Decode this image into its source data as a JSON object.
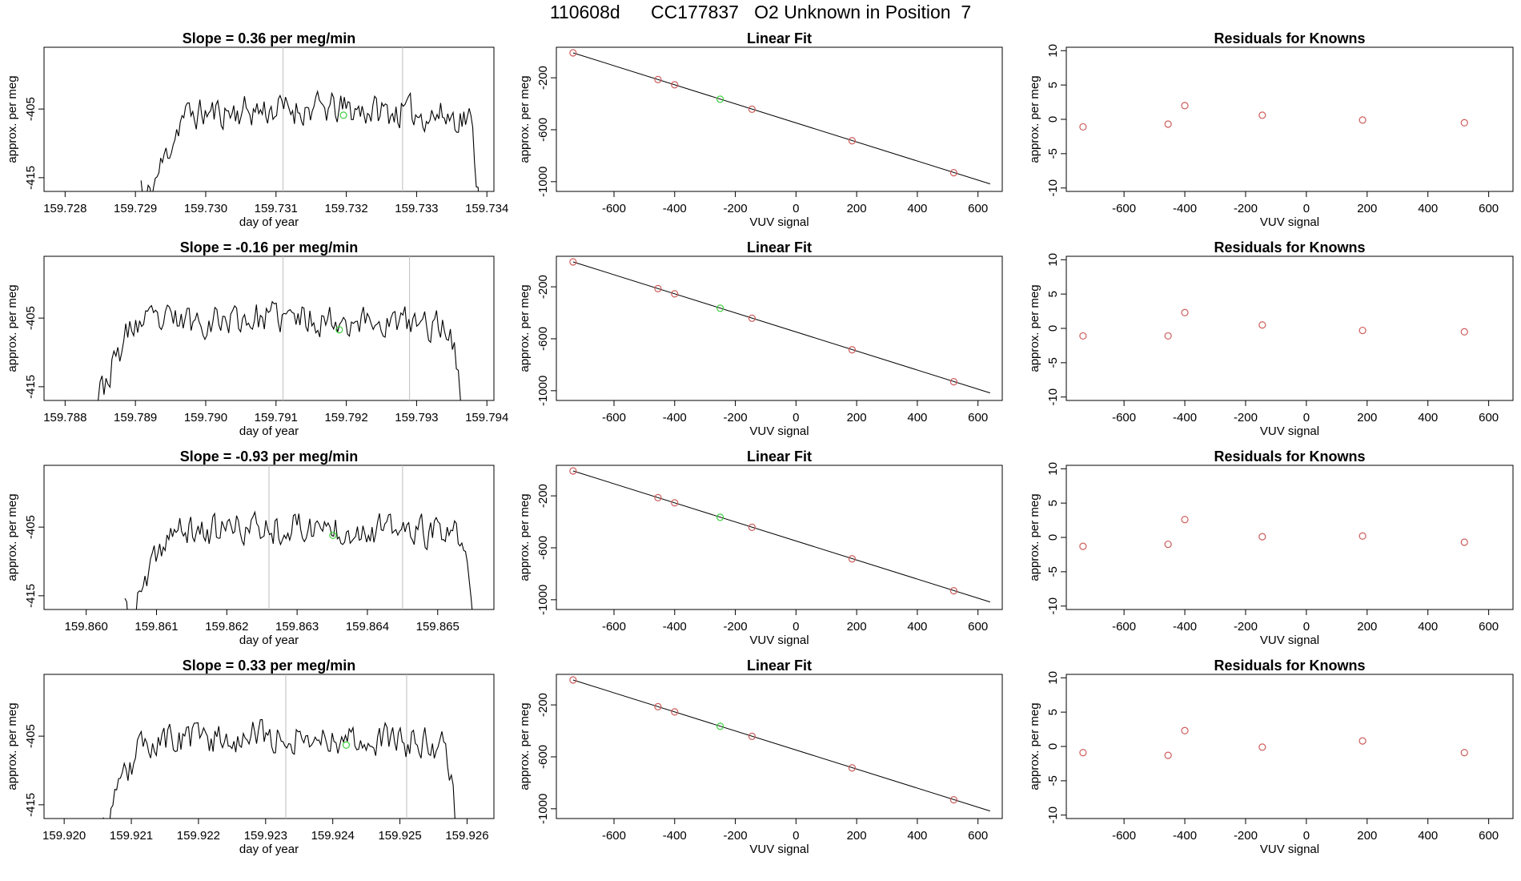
{
  "title": "110608d      CC177837   O2 Unknown in Position  7",
  "colors": {
    "line": "#000000",
    "known_point": "#cd5c5c",
    "unknown_point": "#3cd03c",
    "vline": "#bebebe"
  },
  "rows": [
    {
      "time_series": {
        "title": "Slope =  0.36  per meg/min",
        "xlabel": "day of year",
        "ylabel": "approx. per meg",
        "xlim": [
          159.7277,
          159.7341
        ],
        "ylim": [
          -417,
          -396
        ],
        "xticks": [
          "159.728",
          "159.729",
          "159.730",
          "159.731",
          "159.732",
          "159.733",
          "159.734"
        ],
        "yticks": [
          "-405",
          "-415"
        ],
        "vlines": [
          159.7311,
          159.7328
        ],
        "data_start": 159.72908,
        "data_end": 159.7339,
        "marker_x": 159.73196,
        "marker_y": -405.9,
        "seed": 11
      },
      "linear_fit": {
        "title": "Linear Fit",
        "xlabel": "VUV signal",
        "ylabel": "approx. per meg",
        "xlim": [
          -790,
          680
        ],
        "ylim": [
          -1075,
          35
        ],
        "xticks": [
          "-600",
          "-400",
          "-200",
          "0",
          "200",
          "400",
          "600"
        ],
        "yticks": [
          "-200",
          "-600",
          "-1000"
        ],
        "line": {
          "x": [
            -735,
            640
          ],
          "y": [
            -8,
            -1017
          ]
        },
        "known_points": {
          "x": [
            -735,
            -455,
            -400,
            -145,
            185,
            520
          ],
          "y": [
            -8,
            -214,
            -254,
            -442,
            -685,
            -931
          ]
        },
        "unknown_point": {
          "x": [
            -250
          ],
          "y": [
            -365
          ]
        }
      },
      "residuals": {
        "title": "Residuals for Knowns",
        "xlabel": "VUV signal",
        "ylabel": "approx. per meg",
        "xlim": [
          -790,
          680
        ],
        "ylim": [
          -10.5,
          10.5
        ],
        "xticks": [
          "-600",
          "-400",
          "-200",
          "0",
          "200",
          "400",
          "600"
        ],
        "yticks": [
          "10",
          "5",
          "0",
          "-5",
          "-10"
        ],
        "points": {
          "x": [
            -735,
            -455,
            -400,
            -145,
            185,
            520
          ],
          "y": [
            -1.1,
            -0.7,
            2.0,
            0.6,
            -0.1,
            -0.5
          ]
        }
      }
    },
    {
      "time_series": {
        "title": "Slope =  -0.16  per meg/min",
        "xlabel": "day of year",
        "ylabel": "approx. per meg",
        "xlim": [
          159.7877,
          159.7941
        ],
        "ylim": [
          -417,
          -396
        ],
        "xticks": [
          "159.788",
          "159.789",
          "159.790",
          "159.791",
          "159.792",
          "159.793",
          "159.794"
        ],
        "yticks": [
          "-405",
          "-415"
        ],
        "vlines": [
          159.7911,
          159.7929
        ],
        "data_start": 159.7883,
        "data_end": 159.79365,
        "marker_x": 159.7919,
        "marker_y": -406.7,
        "seed": 23
      },
      "linear_fit": {
        "title": "Linear Fit",
        "xlabel": "VUV signal",
        "ylabel": "approx. per meg",
        "xlim": [
          -790,
          680
        ],
        "ylim": [
          -1075,
          35
        ],
        "xticks": [
          "-600",
          "-400",
          "-200",
          "0",
          "200",
          "400",
          "600"
        ],
        "yticks": [
          "-200",
          "-600",
          "-1000"
        ],
        "line": {
          "x": [
            -735,
            640
          ],
          "y": [
            -8,
            -1017
          ]
        },
        "known_points": {
          "x": [
            -735,
            -455,
            -400,
            -145,
            185,
            520
          ],
          "y": [
            -8,
            -214,
            -254,
            -442,
            -685,
            -931
          ]
        },
        "unknown_point": {
          "x": [
            -250
          ],
          "y": [
            -365
          ]
        }
      },
      "residuals": {
        "title": "Residuals for Knowns",
        "xlabel": "VUV signal",
        "ylabel": "approx. per meg",
        "xlim": [
          -790,
          680
        ],
        "ylim": [
          -10.5,
          10.5
        ],
        "xticks": [
          "-600",
          "-400",
          "-200",
          "0",
          "200",
          "400",
          "600"
        ],
        "yticks": [
          "10",
          "5",
          "0",
          "-5",
          "-10"
        ],
        "points": {
          "x": [
            -735,
            -455,
            -400,
            -145,
            185,
            520
          ],
          "y": [
            -1.1,
            -1.1,
            2.3,
            0.5,
            -0.3,
            -0.5
          ]
        }
      }
    },
    {
      "time_series": {
        "title": "Slope =  -0.93  per meg/min",
        "xlabel": "day of year",
        "ylabel": "approx. per meg",
        "xlim": [
          159.8594,
          159.8658
        ],
        "ylim": [
          -417,
          -396
        ],
        "xticks": [
          "159.860",
          "159.861",
          "159.862",
          "159.863",
          "159.864",
          "159.865"
        ],
        "yticks": [
          "-405",
          "-415"
        ],
        "vlines": [
          159.8626,
          159.8645
        ],
        "data_start": 159.86055,
        "data_end": 159.8655,
        "marker_x": 159.86351,
        "marker_y": -406.2,
        "seed": 37
      },
      "linear_fit": {
        "title": "Linear Fit",
        "xlabel": "VUV signal",
        "ylabel": "approx. per meg",
        "xlim": [
          -790,
          680
        ],
        "ylim": [
          -1075,
          35
        ],
        "xticks": [
          "-600",
          "-400",
          "-200",
          "0",
          "200",
          "400",
          "600"
        ],
        "yticks": [
          "-200",
          "-600",
          "-1000"
        ],
        "line": {
          "x": [
            -735,
            640
          ],
          "y": [
            -8,
            -1017
          ]
        },
        "known_points": {
          "x": [
            -735,
            -455,
            -400,
            -145,
            185,
            520
          ],
          "y": [
            -8,
            -214,
            -254,
            -442,
            -685,
            -931
          ]
        },
        "unknown_point": {
          "x": [
            -250
          ],
          "y": [
            -365
          ]
        }
      },
      "residuals": {
        "title": "Residuals for Knowns",
        "xlabel": "VUV signal",
        "ylabel": "approx. per meg",
        "xlim": [
          -790,
          680
        ],
        "ylim": [
          -10.5,
          10.5
        ],
        "xticks": [
          "-600",
          "-400",
          "-200",
          "0",
          "200",
          "400",
          "600"
        ],
        "yticks": [
          "10",
          "5",
          "0",
          "-5",
          "-10"
        ],
        "points": {
          "x": [
            -735,
            -455,
            -400,
            -145,
            185,
            520
          ],
          "y": [
            -1.3,
            -1.0,
            2.6,
            0.1,
            0.2,
            -0.7
          ]
        }
      }
    },
    {
      "time_series": {
        "title": "Slope =  0.33  per meg/min",
        "xlabel": "day of year",
        "ylabel": "approx. per meg",
        "xlim": [
          159.9197,
          159.9264
        ],
        "ylim": [
          -417,
          -396
        ],
        "xticks": [
          "159.920",
          "159.921",
          "159.922",
          "159.923",
          "159.924",
          "159.925",
          "159.926"
        ],
        "yticks": [
          "-405",
          "-415"
        ],
        "vlines": [
          159.9233,
          159.9251
        ],
        "data_start": 159.9205,
        "data_end": 159.92585,
        "marker_x": 159.9242,
        "marker_y": -406.3,
        "seed": 53
      },
      "linear_fit": {
        "title": "Linear Fit",
        "xlabel": "VUV signal",
        "ylabel": "approx. per meg",
        "xlim": [
          -790,
          680
        ],
        "ylim": [
          -1075,
          35
        ],
        "xticks": [
          "-600",
          "-400",
          "-200",
          "0",
          "200",
          "400",
          "600"
        ],
        "yticks": [
          "-200",
          "-600",
          "-1000"
        ],
        "line": {
          "x": [
            -735,
            640
          ],
          "y": [
            -8,
            -1017
          ]
        },
        "known_points": {
          "x": [
            -735,
            -455,
            -400,
            -145,
            185,
            520
          ],
          "y": [
            -8,
            -214,
            -254,
            -442,
            -685,
            -931
          ]
        },
        "unknown_point": {
          "x": [
            -250
          ],
          "y": [
            -365
          ]
        }
      },
      "residuals": {
        "title": "Residuals for Knowns",
        "xlabel": "VUV signal",
        "ylabel": "approx. per meg",
        "xlim": [
          -790,
          680
        ],
        "ylim": [
          -10.5,
          10.5
        ],
        "xticks": [
          "-600",
          "-400",
          "-200",
          "0",
          "200",
          "400",
          "600"
        ],
        "yticks": [
          "10",
          "5",
          "0",
          "-5",
          "-10"
        ],
        "points": {
          "x": [
            -735,
            -455,
            -400,
            -145,
            185,
            520
          ],
          "y": [
            -0.9,
            -1.3,
            2.3,
            -0.1,
            0.8,
            -0.9
          ]
        }
      }
    }
  ]
}
